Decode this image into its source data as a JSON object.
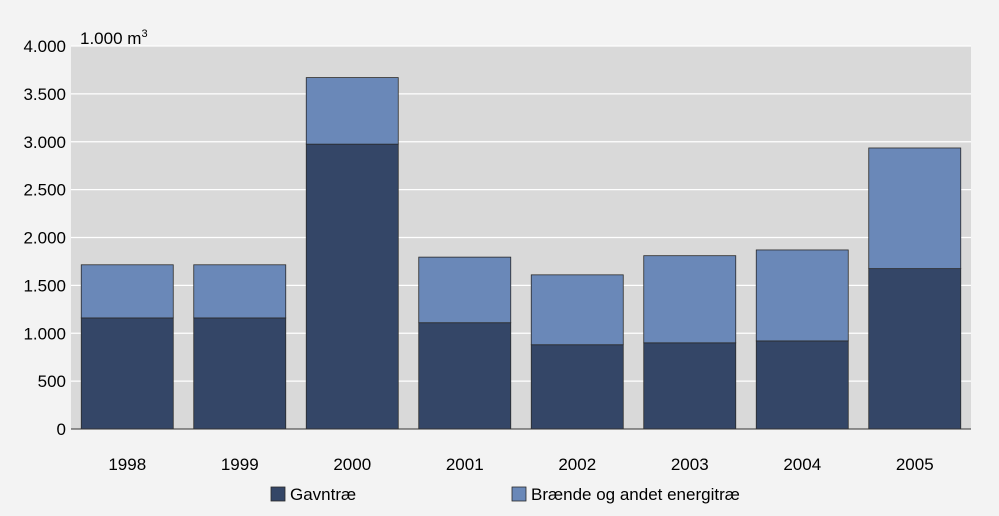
{
  "chart_data": {
    "type": "bar",
    "stacked": true,
    "unit_label": {
      "main": "1.000 m",
      "sup": "3"
    },
    "categories": [
      "1998",
      "1999",
      "2000",
      "2001",
      "2002",
      "2003",
      "2004",
      "2005"
    ],
    "series": [
      {
        "name": "Gavntræ",
        "color": "#344667",
        "values": [
          1160,
          1160,
          2975,
          1110,
          880,
          900,
          920,
          1675
        ]
      },
      {
        "name": "Brænde og andet energitræ",
        "color": "#6a88b8",
        "values": [
          555,
          555,
          695,
          685,
          730,
          910,
          950,
          1260
        ]
      }
    ],
    "ylim": [
      0,
      4000
    ],
    "yticks": [
      0,
      500,
      1000,
      1500,
      2000,
      2500,
      3000,
      3500,
      4000
    ],
    "ytick_labels": [
      "0",
      "500",
      "1.000",
      "1.500",
      "2.000",
      "2.500",
      "3.000",
      "3.500",
      "4.000"
    ],
    "grid": true,
    "legend_position": "bottom",
    "plot_background": "#d9d9d9"
  }
}
